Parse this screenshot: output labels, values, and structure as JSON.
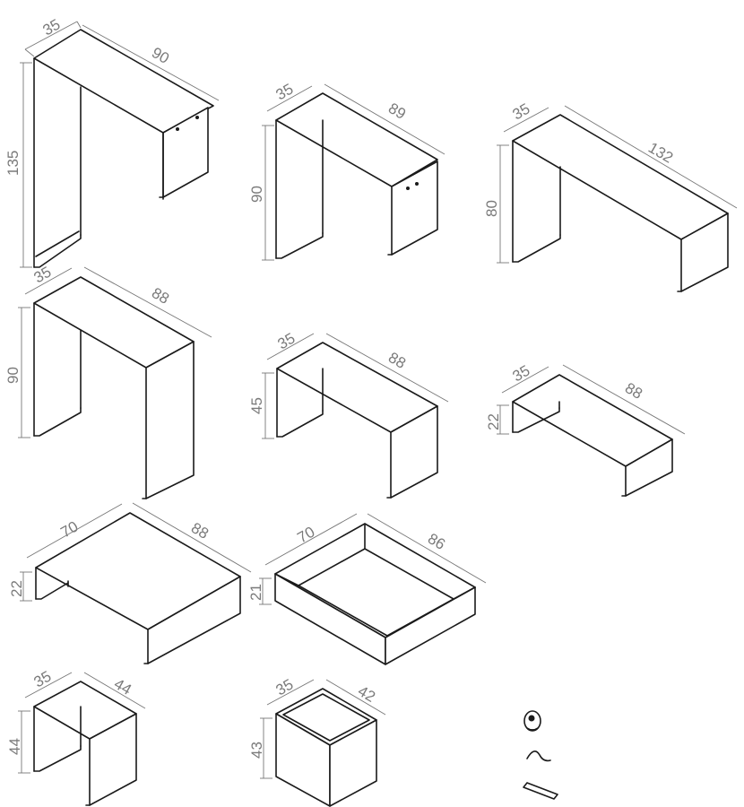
{
  "pieces": [
    {
      "id": "console-135",
      "depth": "35",
      "width": "90",
      "height": "135"
    },
    {
      "id": "console-90-a",
      "depth": "35",
      "width": "89",
      "height": "90"
    },
    {
      "id": "desk-132",
      "depth": "35",
      "width": "132",
      "height": "80"
    },
    {
      "id": "console-90-b",
      "depth": "35",
      "width": "88",
      "height": "90"
    },
    {
      "id": "bench-45",
      "depth": "35",
      "width": "88",
      "height": "45"
    },
    {
      "id": "low-bench-22",
      "depth": "35",
      "width": "88",
      "height": "22"
    },
    {
      "id": "coffee-table",
      "depth": "70",
      "width": "88",
      "height": "22"
    },
    {
      "id": "tray",
      "depth": "70",
      "width": "86",
      "height": "21"
    },
    {
      "id": "side-table",
      "depth": "35",
      "width": "44",
      "height": "44"
    },
    {
      "id": "cube",
      "depth": "35",
      "width": "42",
      "height": "43"
    }
  ],
  "hardware": [
    "cable-clip-icon",
    "hook-icon",
    "bracket-icon"
  ],
  "colors": {
    "line": "#1a1a1a",
    "dimension": "#777777",
    "background": "#ffffff"
  }
}
